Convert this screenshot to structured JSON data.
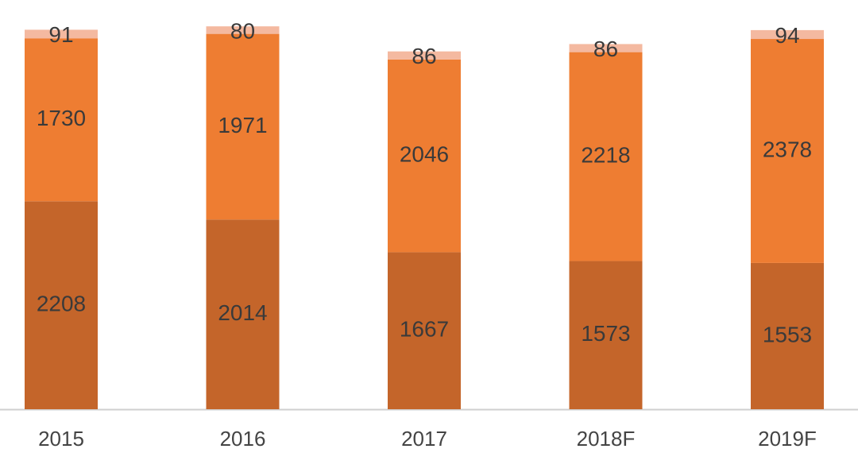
{
  "chart_data": {
    "type": "stacked-bar",
    "categories": [
      "2015",
      "2016",
      "2017",
      "2018F",
      "2019F"
    ],
    "series": [
      {
        "color": "#c4652a",
        "values": [
          2208,
          2014,
          1667,
          1573,
          1553
        ]
      },
      {
        "color": "#ee7d32",
        "values": [
          1730,
          1971,
          2046,
          2218,
          2378
        ]
      },
      {
        "color": "#f4b9a0",
        "values": [
          91,
          80,
          86,
          86,
          94
        ]
      }
    ],
    "ylim": [
      0,
      4100
    ]
  }
}
